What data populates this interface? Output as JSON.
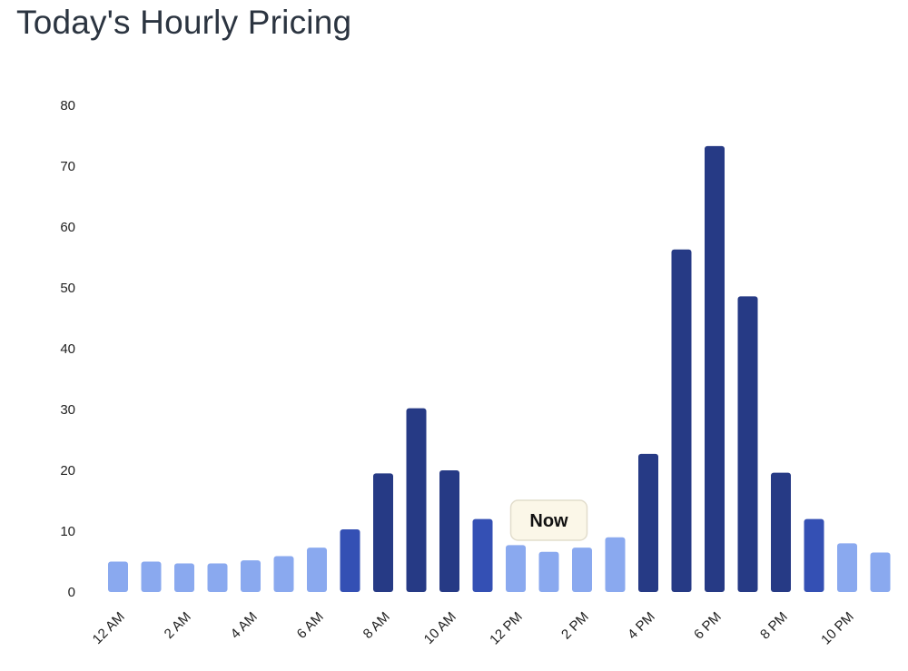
{
  "title": "Today's Hourly Pricing",
  "chart_data": {
    "type": "bar",
    "title": "Today's Hourly Pricing",
    "xlabel": "",
    "ylabel": "",
    "ylim": [
      0,
      80
    ],
    "yticks": [
      0,
      10,
      20,
      30,
      40,
      50,
      60,
      70,
      80
    ],
    "grid": false,
    "categories": [
      "12 AM",
      "1 AM",
      "2 AM",
      "3 AM",
      "4 AM",
      "5 AM",
      "6 AM",
      "7 AM",
      "8 AM",
      "9 AM",
      "10 AM",
      "11 AM",
      "12 PM",
      "1 PM",
      "2 PM",
      "3 PM",
      "4 PM",
      "5 PM",
      "6 PM",
      "7 PM",
      "8 PM",
      "9 PM",
      "10 PM",
      "11 PM"
    ],
    "tick_labels": [
      "12 AM",
      "",
      "2 AM",
      "",
      "4 AM",
      "",
      "6 AM",
      "",
      "8 AM",
      "",
      "10 AM",
      "",
      "12 PM",
      "",
      "2 PM",
      "",
      "4 PM",
      "",
      "6 PM",
      "",
      "8 PM",
      "",
      "10 PM",
      ""
    ],
    "values": [
      5.0,
      5.0,
      4.7,
      4.7,
      5.2,
      5.9,
      7.3,
      10.3,
      19.5,
      30.2,
      20.0,
      12.0,
      7.7,
      6.6,
      7.3,
      9.0,
      22.7,
      56.3,
      73.3,
      48.6,
      19.6,
      12.0,
      8.0,
      6.5
    ],
    "levels": [
      "low",
      "low",
      "low",
      "low",
      "low",
      "low",
      "low",
      "mid",
      "high",
      "high",
      "high",
      "mid",
      "low",
      "low",
      "low",
      "low",
      "high",
      "high",
      "high",
      "high",
      "high",
      "mid",
      "low",
      "low"
    ],
    "colors": {
      "low": "#8aa9ef",
      "mid": "#3450b4",
      "high": "#263a85"
    },
    "annotation": {
      "text": "Now",
      "category": "1 PM"
    }
  }
}
